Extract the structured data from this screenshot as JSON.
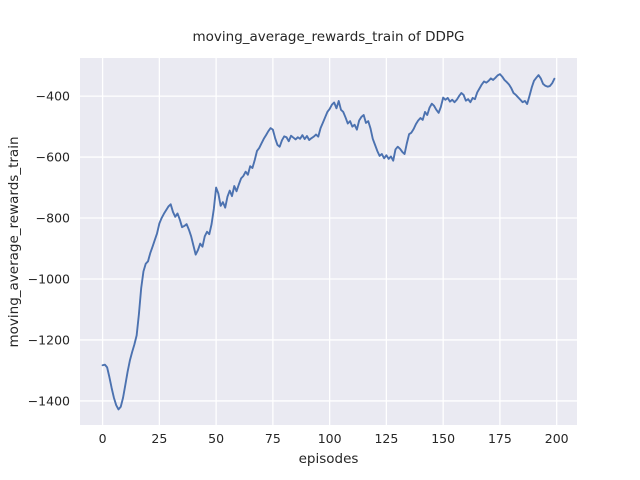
{
  "chart_data": {
    "type": "line",
    "title": "moving_average_rewards_train of DDPG",
    "xlabel": "episodes",
    "ylabel": "moving_average_rewards_train",
    "xlim": [
      -9.95,
      208.95
    ],
    "ylim": [
      -1479,
      -275
    ],
    "grid": true,
    "legend": "none",
    "plot_bg_color": "#eaeaf2",
    "grid_color": "#ffffff",
    "line_color": "#4c72b0",
    "text_color": "#262626",
    "xticks": [
      {
        "value": 0,
        "label": "0"
      },
      {
        "value": 25,
        "label": "25"
      },
      {
        "value": 50,
        "label": "50"
      },
      {
        "value": 75,
        "label": "75"
      },
      {
        "value": 100,
        "label": "100"
      },
      {
        "value": 125,
        "label": "125"
      },
      {
        "value": 150,
        "label": "150"
      },
      {
        "value": 175,
        "label": "175"
      },
      {
        "value": 200,
        "label": "200"
      }
    ],
    "yticks": [
      {
        "value": -400,
        "label": "−400"
      },
      {
        "value": -600,
        "label": "−600"
      },
      {
        "value": -800,
        "label": "−800"
      },
      {
        "value": -1000,
        "label": "−1000"
      },
      {
        "value": -1200,
        "label": "−1200"
      },
      {
        "value": -1400,
        "label": "−1400"
      }
    ],
    "series": [
      {
        "name": "moving_average_rewards_train",
        "x0": 0,
        "dx": 1,
        "values": [
          -1283,
          -1281,
          -1290,
          -1322,
          -1358,
          -1390,
          -1414,
          -1428,
          -1419,
          -1390,
          -1348,
          -1305,
          -1268,
          -1240,
          -1215,
          -1185,
          -1115,
          -1030,
          -975,
          -950,
          -942,
          -915,
          -894,
          -872,
          -850,
          -818,
          -800,
          -786,
          -774,
          -762,
          -755,
          -780,
          -796,
          -785,
          -805,
          -830,
          -826,
          -820,
          -838,
          -860,
          -890,
          -920,
          -905,
          -884,
          -894,
          -860,
          -845,
          -853,
          -820,
          -770,
          -700,
          -720,
          -760,
          -748,
          -766,
          -730,
          -710,
          -728,
          -695,
          -712,
          -690,
          -670,
          -662,
          -648,
          -658,
          -630,
          -636,
          -610,
          -580,
          -570,
          -555,
          -540,
          -528,
          -515,
          -505,
          -510,
          -538,
          -560,
          -566,
          -545,
          -532,
          -535,
          -548,
          -530,
          -536,
          -542,
          -535,
          -540,
          -528,
          -541,
          -531,
          -544,
          -538,
          -533,
          -526,
          -533,
          -505,
          -488,
          -470,
          -452,
          -442,
          -428,
          -421,
          -440,
          -416,
          -445,
          -452,
          -470,
          -490,
          -482,
          -500,
          -494,
          -510,
          -480,
          -468,
          -462,
          -488,
          -482,
          -506,
          -540,
          -560,
          -580,
          -596,
          -590,
          -604,
          -594,
          -606,
          -598,
          -612,
          -575,
          -566,
          -573,
          -583,
          -590,
          -555,
          -525,
          -520,
          -508,
          -492,
          -480,
          -472,
          -478,
          -452,
          -462,
          -438,
          -425,
          -432,
          -445,
          -455,
          -435,
          -405,
          -412,
          -406,
          -418,
          -412,
          -420,
          -412,
          -400,
          -390,
          -396,
          -415,
          -410,
          -420,
          -406,
          -410,
          -388,
          -375,
          -362,
          -352,
          -356,
          -350,
          -342,
          -347,
          -340,
          -332,
          -328,
          -336,
          -347,
          -354,
          -362,
          -374,
          -390,
          -396,
          -404,
          -412,
          -420,
          -416,
          -426,
          -400,
          -372,
          -350,
          -340,
          -331,
          -342,
          -360,
          -366,
          -369,
          -367,
          -358,
          -343
        ]
      }
    ]
  }
}
